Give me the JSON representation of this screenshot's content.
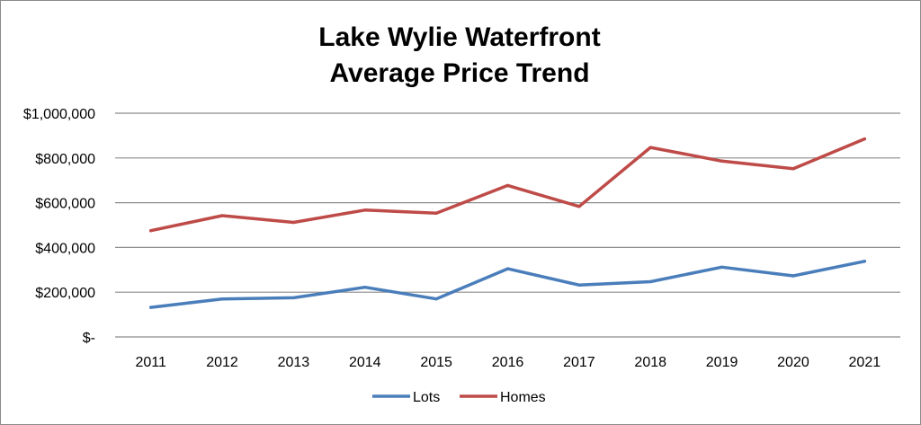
{
  "chart_data": {
    "type": "line",
    "title_lines": [
      "Lake Wylie Waterfront",
      "Average Price Trend"
    ],
    "categories": [
      "2011",
      "2012",
      "2013",
      "2014",
      "2015",
      "2016",
      "2017",
      "2018",
      "2019",
      "2020",
      "2021"
    ],
    "series": [
      {
        "name": "Lots",
        "color": "#4a7ebb",
        "values": [
          132000,
          170000,
          175000,
          222000,
          170000,
          305000,
          232000,
          247000,
          312000,
          273000,
          338000
        ]
      },
      {
        "name": "Homes",
        "color": "#be4b48",
        "values": [
          475000,
          542000,
          512000,
          567000,
          553000,
          677000,
          583000,
          847000,
          786000,
          752000,
          885000
        ]
      }
    ],
    "y_ticks": [
      {
        "value": 0,
        "label": "$-"
      },
      {
        "value": 200000,
        "label": "$200,000"
      },
      {
        "value": 400000,
        "label": "$400,000"
      },
      {
        "value": 600000,
        "label": "$600,000"
      },
      {
        "value": 800000,
        "label": "$800,000"
      },
      {
        "value": 1000000,
        "label": "$1,000,000"
      }
    ],
    "ylim": [
      0,
      1000000
    ],
    "grid": true,
    "gridline_color": "#8c8c8c",
    "legend_position": "bottom-center"
  }
}
